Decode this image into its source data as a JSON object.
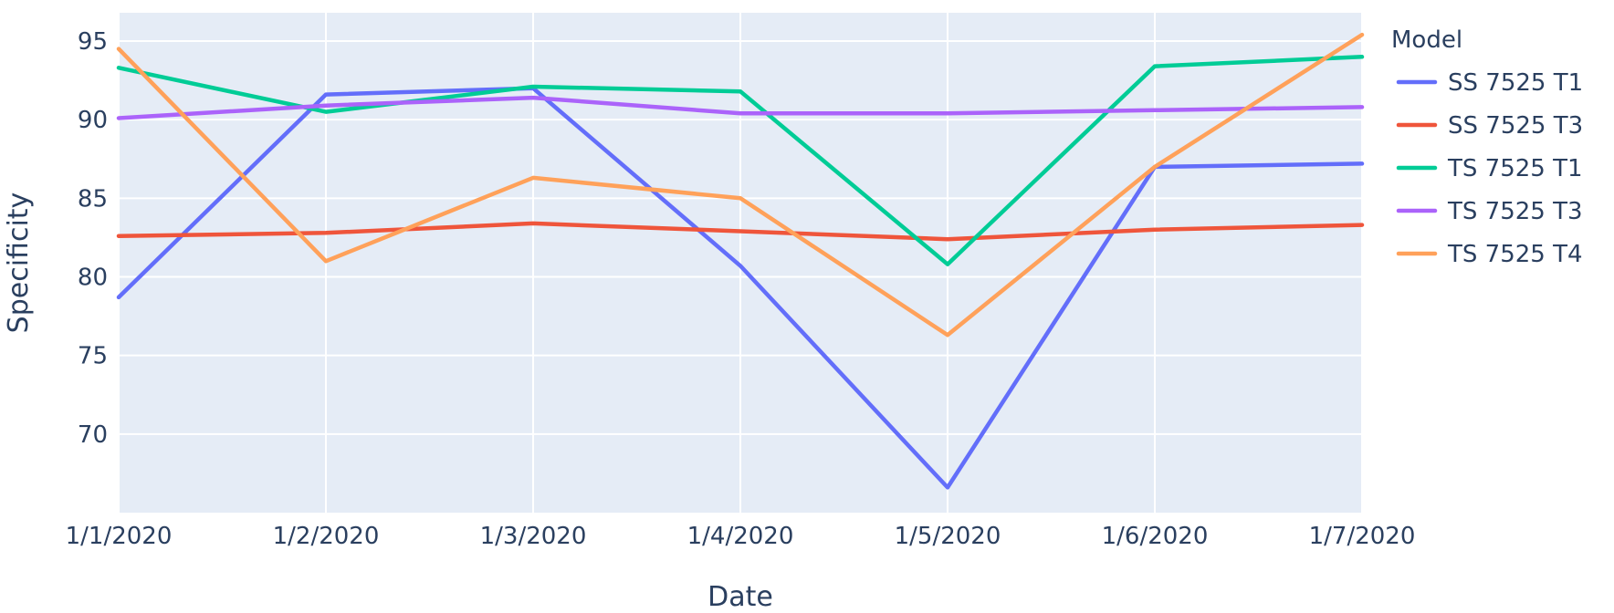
{
  "chart_data": {
    "type": "line",
    "title": "",
    "xlabel": "Date",
    "ylabel": "Specificity",
    "x": [
      "1/1/2020",
      "1/2/2020",
      "1/3/2020",
      "1/4/2020",
      "1/5/2020",
      "1/6/2020",
      "1/7/2020"
    ],
    "yticks": [
      70,
      75,
      80,
      85,
      90,
      95
    ],
    "ylim": [
      65,
      96.8
    ],
    "grid": true,
    "legend": {
      "title": "Model",
      "position": "right"
    },
    "series": [
      {
        "name": "SS 7525 T1",
        "color": "#636efa",
        "values": [
          78.7,
          91.6,
          92.0,
          80.7,
          66.6,
          87.0,
          87.2
        ]
      },
      {
        "name": "SS 7525 T3",
        "color": "#ef553b",
        "values": [
          82.6,
          82.8,
          83.4,
          82.9,
          82.4,
          83.0,
          83.3
        ]
      },
      {
        "name": "TS 7525 T1",
        "color": "#00cc96",
        "values": [
          93.3,
          90.5,
          92.1,
          91.8,
          80.8,
          93.4,
          94.0
        ]
      },
      {
        "name": "TS 7525 T3",
        "color": "#ab63fa",
        "values": [
          90.1,
          90.9,
          91.4,
          90.4,
          90.4,
          90.6,
          90.8
        ]
      },
      {
        "name": "TS 7525 T4",
        "color": "#ffa15a",
        "values": [
          94.5,
          81.0,
          86.3,
          85.0,
          76.3,
          87.0,
          95.4
        ]
      }
    ]
  }
}
